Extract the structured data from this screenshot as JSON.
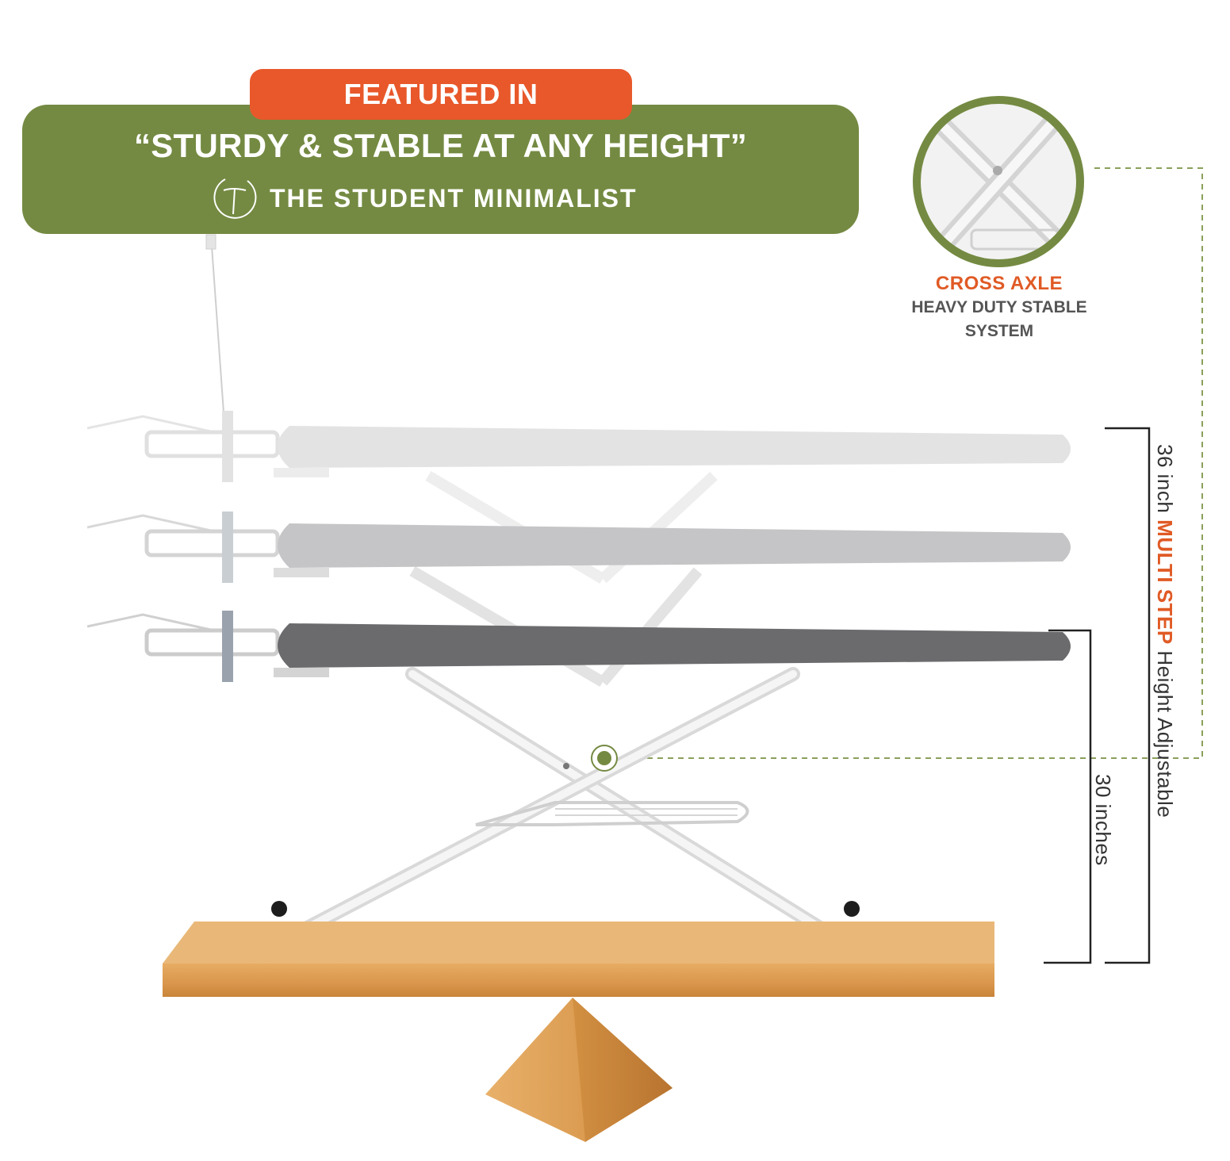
{
  "badge": {
    "label": "FEATURED IN"
  },
  "banner": {
    "quote": "“STURDY & STABLE AT ANY HEIGHT”",
    "source": "THE STUDENT MINIMALIST"
  },
  "callout": {
    "title": "CROSS AXLE",
    "subtitle_line1": "HEAVY DUTY STABLE",
    "subtitle_line2": "SYSTEM"
  },
  "dimensions": {
    "outer_prefix": "36 inch ",
    "outer_accent": "MULTI STEP",
    "outer_suffix": " Height Adjustable",
    "inner": "30 inches"
  },
  "colors": {
    "accent_orange": "#e8582a",
    "banner_green": "#748a42",
    "board_top": "#6b6b6e",
    "board_mid": "#c4c4c6",
    "board_low": "#e3e3e3",
    "wood": "#d99a52"
  }
}
